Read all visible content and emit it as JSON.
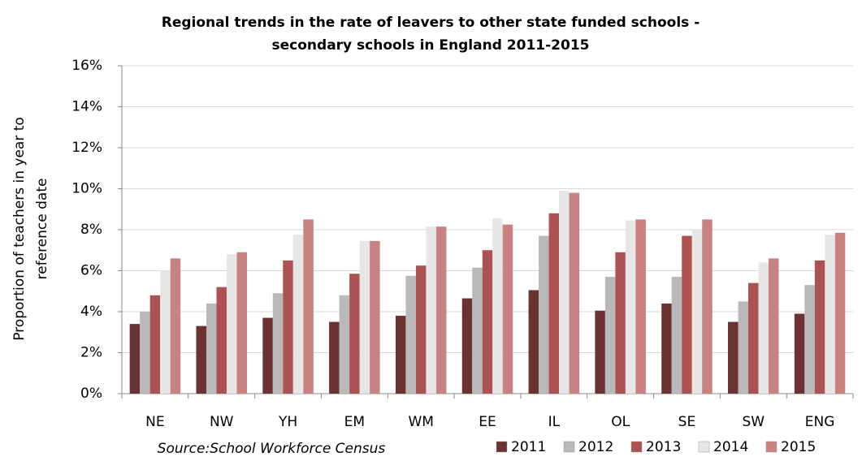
{
  "chart_data": {
    "type": "bar",
    "title": [
      "Regional trends in the rate of leavers to other state funded schools -",
      "secondary schools in England 2011-2015"
    ],
    "y_label": [
      "Proportion of teachers in year to",
      "reference date"
    ],
    "source": "Source:School Workforce Census",
    "categories": [
      "NE",
      "NW",
      "YH",
      "EM",
      "WM",
      "EE",
      "IL",
      "OL",
      "SE",
      "SW",
      "ENG"
    ],
    "series": [
      {
        "name": "2011",
        "color": "#6b3232",
        "values": [
          3.4,
          3.3,
          3.7,
          3.5,
          3.8,
          4.65,
          5.05,
          4.05,
          4.4,
          3.5,
          3.9
        ]
      },
      {
        "name": "2012",
        "color": "#b9b9b9",
        "values": [
          4.0,
          4.4,
          4.9,
          4.8,
          5.75,
          6.15,
          7.7,
          5.7,
          5.7,
          4.5,
          5.3
        ]
      },
      {
        "name": "2013",
        "color": "#ad5252",
        "values": [
          4.8,
          5.2,
          6.5,
          5.85,
          6.25,
          7.0,
          8.8,
          6.9,
          7.7,
          5.4,
          6.5
        ]
      },
      {
        "name": "2014",
        "color": "#e6e6e6",
        "values": [
          6.0,
          6.8,
          7.75,
          7.45,
          8.15,
          8.55,
          9.9,
          8.45,
          8.0,
          6.4,
          7.75
        ]
      },
      {
        "name": "2015",
        "color": "#c98282",
        "values": [
          6.6,
          6.9,
          8.5,
          7.45,
          8.15,
          8.25,
          9.8,
          8.5,
          8.5,
          6.6,
          7.85
        ]
      }
    ],
    "ylim": [
      0,
      16
    ],
    "yticks": [
      {
        "value": 0,
        "label": "0%"
      },
      {
        "value": 2,
        "label": "2%"
      },
      {
        "value": 4,
        "label": "4%"
      },
      {
        "value": 6,
        "label": "6%"
      },
      {
        "value": 8,
        "label": "8%"
      },
      {
        "value": 10,
        "label": "10%"
      },
      {
        "value": 12,
        "label": "12%"
      },
      {
        "value": 14,
        "label": "14%"
      },
      {
        "value": 16,
        "label": "16%"
      }
    ],
    "grid": true,
    "legend": "bottom-right"
  }
}
